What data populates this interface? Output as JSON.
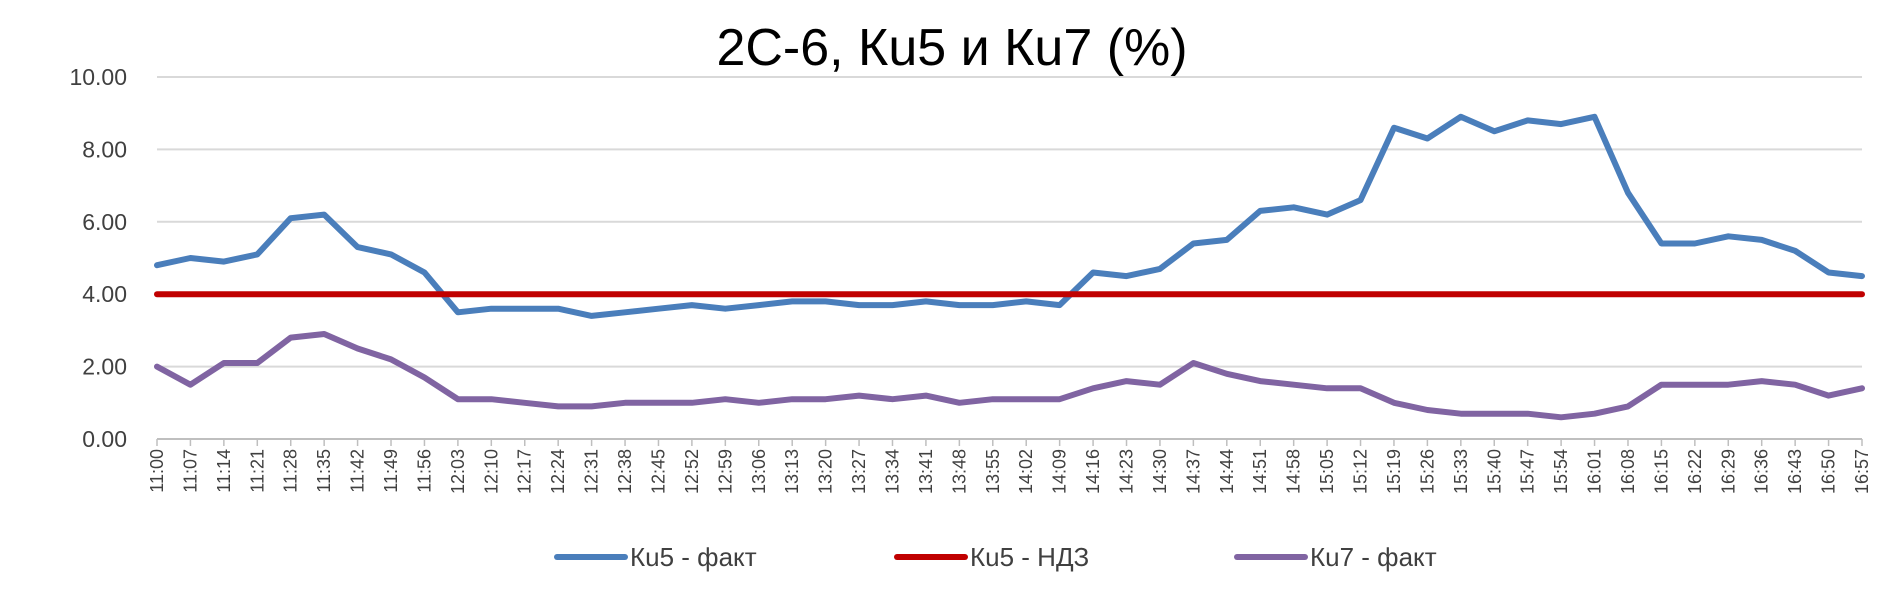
{
  "chart_data": {
    "type": "line",
    "title": "2С-6, Кu5 и Кu7 (%)",
    "xlabel": "",
    "ylabel": "",
    "ylim": [
      0,
      10
    ],
    "yticks": [
      "0.00",
      "2.00",
      "4.00",
      "6.00",
      "8.00",
      "10.00"
    ],
    "grid": "horizontal",
    "legend_position": "bottom",
    "x": [
      "11:00",
      "11:07",
      "11:14",
      "11:21",
      "11:28",
      "11:35",
      "11:42",
      "11:49",
      "11:56",
      "12:03",
      "12:10",
      "12:17",
      "12:24",
      "12:31",
      "12:38",
      "12:45",
      "12:52",
      "12:59",
      "13:06",
      "13:13",
      "13:20",
      "13:27",
      "13:34",
      "13:41",
      "13:48",
      "13:55",
      "14:02",
      "14:09",
      "14:16",
      "14:23",
      "14:30",
      "14:37",
      "14:44",
      "14:51",
      "14:58",
      "15:05",
      "15:12",
      "15:19",
      "15:26",
      "15:33",
      "15:40",
      "15:47",
      "15:54",
      "16:01",
      "16:08",
      "16:15",
      "16:22",
      "16:29",
      "16:36",
      "16:43",
      "16:50",
      "16:57"
    ],
    "series": [
      {
        "name": "Кu5 - факт",
        "color": "#4A7EBB",
        "values": [
          4.8,
          5.0,
          4.9,
          5.1,
          6.1,
          6.2,
          5.3,
          5.1,
          4.6,
          3.5,
          3.6,
          3.6,
          3.6,
          3.4,
          3.5,
          3.6,
          3.7,
          3.6,
          3.7,
          3.8,
          3.8,
          3.7,
          3.7,
          3.8,
          3.7,
          3.7,
          3.8,
          3.7,
          4.6,
          4.5,
          4.7,
          5.4,
          5.5,
          6.3,
          6.4,
          6.2,
          6.6,
          8.6,
          8.3,
          8.9,
          8.5,
          8.8,
          8.7,
          8.9,
          6.8,
          5.4,
          5.4,
          5.6,
          5.5,
          5.2,
          4.6,
          4.5
        ]
      },
      {
        "name": "Кu5 - НДЗ",
        "color": "#C00000",
        "values": [
          4.0,
          4.0,
          4.0,
          4.0,
          4.0,
          4.0,
          4.0,
          4.0,
          4.0,
          4.0,
          4.0,
          4.0,
          4.0,
          4.0,
          4.0,
          4.0,
          4.0,
          4.0,
          4.0,
          4.0,
          4.0,
          4.0,
          4.0,
          4.0,
          4.0,
          4.0,
          4.0,
          4.0,
          4.0,
          4.0,
          4.0,
          4.0,
          4.0,
          4.0,
          4.0,
          4.0,
          4.0,
          4.0,
          4.0,
          4.0,
          4.0,
          4.0,
          4.0,
          4.0,
          4.0,
          4.0,
          4.0,
          4.0,
          4.0,
          4.0,
          4.0,
          4.0
        ]
      },
      {
        "name": "Кu7 - факт",
        "color": "#8064A2",
        "values": [
          2.0,
          1.5,
          2.1,
          2.1,
          2.8,
          2.9,
          2.5,
          2.2,
          1.7,
          1.1,
          1.1,
          1.0,
          0.9,
          0.9,
          1.0,
          1.0,
          1.0,
          1.1,
          1.0,
          1.1,
          1.1,
          1.2,
          1.1,
          1.2,
          1.0,
          1.1,
          1.1,
          1.1,
          1.4,
          1.6,
          1.5,
          2.1,
          1.8,
          1.6,
          1.5,
          1.4,
          1.4,
          1.0,
          0.8,
          0.7,
          0.7,
          0.7,
          0.6,
          0.7,
          0.9,
          1.5,
          1.5,
          1.5,
          1.6,
          1.5,
          1.2,
          1.4
        ]
      }
    ]
  }
}
